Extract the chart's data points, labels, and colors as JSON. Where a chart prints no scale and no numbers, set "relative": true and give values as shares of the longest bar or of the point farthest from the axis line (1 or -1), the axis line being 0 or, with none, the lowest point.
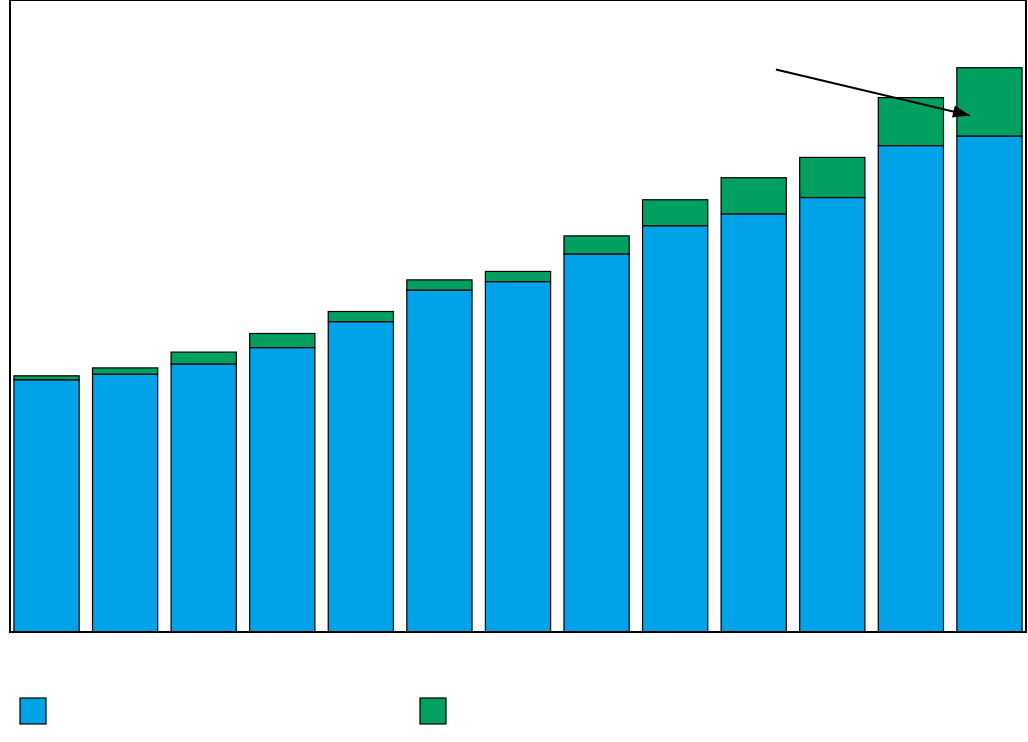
{
  "chart_data": {
    "type": "bar",
    "stacked": true,
    "relative": true,
    "categories": [
      null,
      null,
      null,
      null,
      null,
      null,
      null,
      null,
      null,
      null,
      null,
      null,
      null
    ],
    "series": [
      {
        "color": "#00a2e8",
        "values": [
          0.447,
          0.457,
          0.475,
          0.504,
          0.55,
          0.606,
          0.621,
          0.67,
          0.72,
          0.741,
          0.77,
          0.862,
          0.879
        ]
      },
      {
        "color": "#00a060",
        "values": [
          0.007,
          0.011,
          0.021,
          0.025,
          0.018,
          0.018,
          0.018,
          0.032,
          0.046,
          0.064,
          0.071,
          0.085,
          0.121
        ]
      }
    ]
  }
}
